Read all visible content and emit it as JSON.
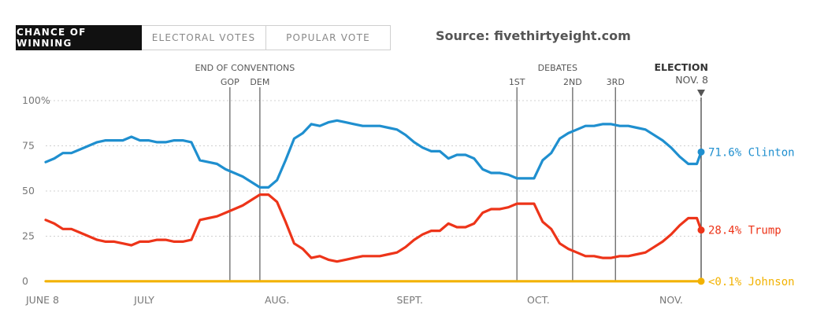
{
  "tabs": [
    {
      "label": "CHANCE OF WINNING",
      "active": true
    },
    {
      "label": "ELECTORAL VOTES",
      "active": false
    },
    {
      "label": "POPULAR VOTE",
      "active": false
    }
  ],
  "source": "Source: fivethirtyeight.com",
  "chart_data": {
    "type": "line",
    "x_unit": "days after June 8, 2016",
    "xlim": [
      0,
      153
    ],
    "ylim": [
      0,
      100
    ],
    "yticks": [
      {
        "value": 100,
        "label": "100%"
      },
      {
        "value": 75,
        "label": "75"
      },
      {
        "value": 50,
        "label": "50"
      },
      {
        "value": 25,
        "label": "25"
      },
      {
        "value": 0,
        "label": "0"
      }
    ],
    "xticks": [
      {
        "x": 0,
        "label": "JUNE 8"
      },
      {
        "x": 23,
        "label": "JULY"
      },
      {
        "x": 54,
        "label": "AUG."
      },
      {
        "x": 85,
        "label": "SEPT."
      },
      {
        "x": 115,
        "label": "OCT."
      },
      {
        "x": 146,
        "label": "NOV."
      }
    ],
    "events": [
      {
        "x": 43,
        "label": "GOP"
      },
      {
        "x": 50,
        "label": "DEM"
      },
      {
        "x": 110,
        "label": "1ST"
      },
      {
        "x": 123,
        "label": "2ND"
      },
      {
        "x": 133,
        "label": "3RD"
      }
    ],
    "event_groups": [
      {
        "label": "END OF CONVENTIONS",
        "x": 46.5
      },
      {
        "label": "DEBATES",
        "x": 119.5
      }
    ],
    "election": {
      "x": 153,
      "label": "ELECTION",
      "sublabel": "NOV. 8"
    },
    "series": [
      {
        "name": "Clinton",
        "color": "#1f8fcf",
        "end_label": "71.6% Clinton",
        "x": [
          0,
          2,
          4,
          6,
          8,
          10,
          12,
          14,
          16,
          18,
          20,
          22,
          24,
          26,
          28,
          30,
          32,
          34,
          36,
          38,
          40,
          42,
          44,
          46,
          48,
          50,
          52,
          54,
          56,
          58,
          60,
          62,
          64,
          66,
          68,
          70,
          72,
          74,
          76,
          78,
          80,
          82,
          84,
          86,
          88,
          90,
          92,
          94,
          96,
          98,
          100,
          102,
          104,
          106,
          108,
          110,
          112,
          114,
          116,
          118,
          120,
          122,
          124,
          126,
          128,
          130,
          132,
          134,
          136,
          138,
          140,
          142,
          144,
          146,
          148,
          150,
          152,
          153
        ],
        "values": [
          66,
          68,
          71,
          71,
          73,
          75,
          77,
          78,
          78,
          78,
          80,
          78,
          78,
          77,
          77,
          78,
          78,
          77,
          67,
          66,
          65,
          62,
          60,
          58,
          55,
          52,
          52,
          56,
          67,
          79,
          82,
          87,
          86,
          88,
          89,
          88,
          87,
          86,
          86,
          86,
          85,
          84,
          81,
          77,
          74,
          72,
          72,
          68,
          70,
          70,
          68,
          62,
          60,
          60,
          59,
          57,
          57,
          57,
          67,
          71,
          79,
          82,
          84,
          86,
          86,
          87,
          87,
          86,
          86,
          85,
          84,
          81,
          78,
          74,
          69,
          65,
          65,
          71.6
        ]
      },
      {
        "name": "Trump",
        "color": "#ed3419",
        "end_label": "28.4% Trump",
        "x": [
          0,
          2,
          4,
          6,
          8,
          10,
          12,
          14,
          16,
          18,
          20,
          22,
          24,
          26,
          28,
          30,
          32,
          34,
          36,
          38,
          40,
          42,
          44,
          46,
          48,
          50,
          52,
          54,
          56,
          58,
          60,
          62,
          64,
          66,
          68,
          70,
          72,
          74,
          76,
          78,
          80,
          82,
          84,
          86,
          88,
          90,
          92,
          94,
          96,
          98,
          100,
          102,
          104,
          106,
          108,
          110,
          112,
          114,
          116,
          118,
          120,
          122,
          124,
          126,
          128,
          130,
          132,
          134,
          136,
          138,
          140,
          142,
          144,
          146,
          148,
          150,
          152,
          153
        ],
        "values": [
          34,
          32,
          29,
          29,
          27,
          25,
          23,
          22,
          22,
          21,
          20,
          22,
          22,
          23,
          23,
          22,
          22,
          23,
          34,
          35,
          36,
          38,
          40,
          42,
          45,
          48,
          48,
          44,
          33,
          21,
          18,
          13,
          14,
          12,
          11,
          12,
          13,
          14,
          14,
          14,
          15,
          16,
          19,
          23,
          26,
          28,
          28,
          32,
          30,
          30,
          32,
          38,
          40,
          40,
          41,
          43,
          43,
          43,
          33,
          29,
          21,
          18,
          16,
          14,
          14,
          13,
          13,
          14,
          14,
          15,
          16,
          19,
          22,
          26,
          31,
          35,
          35,
          28.4
        ]
      },
      {
        "name": "Johnson",
        "color": "#f2b202",
        "end_label": "<0.1% Johnson",
        "x": [
          0,
          153
        ],
        "values": [
          0.1,
          0.1
        ]
      }
    ]
  }
}
